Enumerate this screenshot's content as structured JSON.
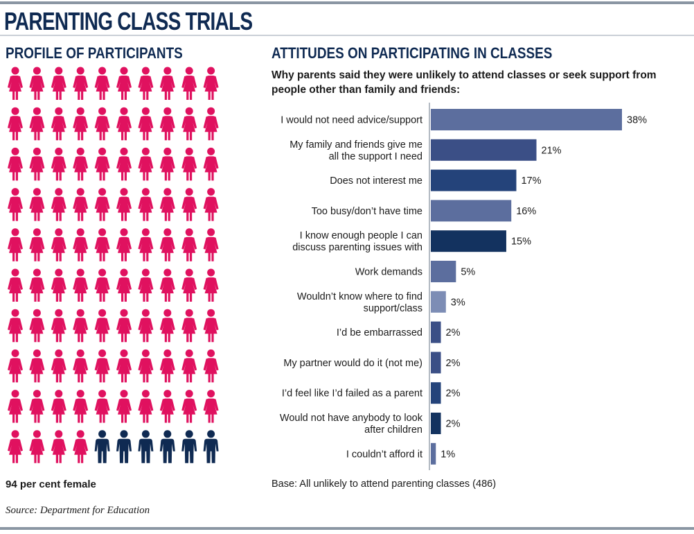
{
  "header": {
    "title": "PARENTING CLASS TRIALS"
  },
  "profile": {
    "title": "PROFILE OF PARTICIPANTS",
    "total_icons": 100,
    "female_icons": 94,
    "male_icons": 6,
    "female_color": "#e0115f",
    "male_color": "#0f2a52",
    "caption": "94 per cent female",
    "source": "Source: Department for Education"
  },
  "attitudes": {
    "title": "ATTITUDES ON PARTICIPATING IN CLASSES",
    "subtitle": "Why parents said they were unlikely to attend classes or seek support from people other than family and friends:",
    "base_note": "Base: All unlikely to attend parenting classes (486)"
  },
  "chart_data": {
    "type": "bar",
    "orientation": "horizontal",
    "title": "ATTITUDES ON PARTICIPATING IN CLASSES",
    "subtitle": "Why parents said they were unlikely to attend classes or seek support from people other than family and friends:",
    "categories": [
      [
        "I would not need advice/support"
      ],
      [
        "My family and friends give me",
        "all the support I need"
      ],
      [
        "Does not interest me"
      ],
      [
        "Too busy/don’t have time"
      ],
      [
        "I know enough people I can",
        "discuss parenting issues with"
      ],
      [
        "Work demands"
      ],
      [
        "Wouldn’t know where to find",
        "support/class"
      ],
      [
        "I’d be embarrassed"
      ],
      [
        "My partner would do it (not me)"
      ],
      [
        "I’d feel like I’d failed as a parent"
      ],
      [
        "Would not have anybody to look",
        "after children"
      ],
      [
        "I couldn’t afford it"
      ]
    ],
    "values": [
      38,
      21,
      17,
      16,
      15,
      5,
      3,
      2,
      2,
      2,
      2,
      1
    ],
    "value_labels": [
      "38%",
      "21%",
      "17%",
      "16%",
      "15%",
      "5%",
      "3%",
      "2%",
      "2%",
      "2%",
      "2%",
      "1%"
    ],
    "bar_colors": [
      "#5c6e9e",
      "#3b4f86",
      "#24437a",
      "#5c6e9e",
      "#13325f",
      "#5c6e9e",
      "#7d8db5",
      "#3b4f86",
      "#3b4f86",
      "#24437a",
      "#13325f",
      "#5c6e9e"
    ],
    "xlim": [
      0,
      40
    ],
    "unit": "%",
    "grid": false,
    "legend": "none"
  }
}
